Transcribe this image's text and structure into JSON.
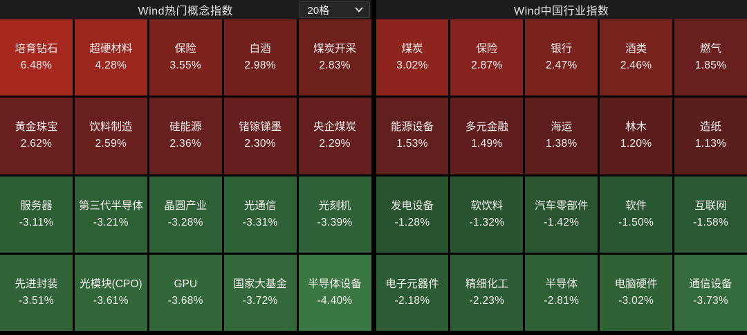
{
  "header": {
    "left_title": "Wind热门概念指数",
    "right_title": "Wind中国行业指数",
    "dropdown": {
      "value": "20格",
      "icon": "chevron-down-icon"
    }
  },
  "colors": {
    "background": "#000000",
    "header_bg": "#1c1c1c",
    "dropdown_bg": "#262626",
    "tile_text": "#f2efee",
    "up_bright": "#a7281e",
    "up_dark": "#5a1e1d",
    "down_bright": "#3a7742",
    "down_dark": "#27542e"
  },
  "chart_data": [
    {
      "type": "heatmap",
      "title": "Wind热门概念指数",
      "grid": {
        "rows": 4,
        "cols": 5
      },
      "value_unit": "percent_change",
      "cells": [
        {
          "label": "培育钻石",
          "value": 6.48,
          "display": "6.48%",
          "color": "#a7281e"
        },
        {
          "label": "超硬材料",
          "value": 4.28,
          "display": "4.28%",
          "color": "#9a261e"
        },
        {
          "label": "保险",
          "value": 3.55,
          "display": "3.55%",
          "color": "#7e221e"
        },
        {
          "label": "白酒",
          "value": 2.98,
          "display": "2.98%",
          "color": "#70201d"
        },
        {
          "label": "煤炭开采",
          "value": 2.83,
          "display": "2.83%",
          "color": "#6e201d"
        },
        {
          "label": "黄金珠宝",
          "value": 2.62,
          "display": "2.62%",
          "color": "#6a201e"
        },
        {
          "label": "饮料制造",
          "value": 2.59,
          "display": "2.59%",
          "color": "#69201e"
        },
        {
          "label": "硅能源",
          "value": 2.36,
          "display": "2.36%",
          "color": "#66201e"
        },
        {
          "label": "锗镓锑墨",
          "value": 2.3,
          "display": "2.30%",
          "color": "#651f1e"
        },
        {
          "label": "央企煤炭",
          "value": 2.29,
          "display": "2.29%",
          "color": "#651f1e"
        },
        {
          "label": "服务器",
          "value": -3.11,
          "display": "-3.11%",
          "color": "#2c5f34"
        },
        {
          "label": "第三代半导体",
          "value": -3.21,
          "display": "-3.21%",
          "color": "#2d6035"
        },
        {
          "label": "晶圆产业",
          "value": -3.28,
          "display": "-3.28%",
          "color": "#2d6135"
        },
        {
          "label": "光通信",
          "value": -3.31,
          "display": "-3.31%",
          "color": "#2e6236"
        },
        {
          "label": "光刻机",
          "value": -3.39,
          "display": "-3.39%",
          "color": "#2f6337"
        },
        {
          "label": "先进封装",
          "value": -3.51,
          "display": "-3.51%",
          "color": "#306438"
        },
        {
          "label": "光模块(CPO)",
          "value": -3.61,
          "display": "-3.61%",
          "color": "#316639"
        },
        {
          "label": "GPU",
          "value": -3.68,
          "display": "-3.68%",
          "color": "#32673a"
        },
        {
          "label": "国家大基金",
          "value": -3.72,
          "display": "-3.72%",
          "color": "#33683a"
        },
        {
          "label": "半导体设备",
          "value": -4.4,
          "display": "-4.40%",
          "color": "#3a7742"
        }
      ]
    },
    {
      "type": "heatmap",
      "title": "Wind中国行业指数",
      "grid": {
        "rows": 4,
        "cols": 5
      },
      "value_unit": "percent_change",
      "cells": [
        {
          "label": "煤炭",
          "value": 3.02,
          "display": "3.02%",
          "color": "#8e241e"
        },
        {
          "label": "保险",
          "value": 2.87,
          "display": "2.87%",
          "color": "#87231e"
        },
        {
          "label": "银行",
          "value": 2.47,
          "display": "2.47%",
          "color": "#79221e"
        },
        {
          "label": "酒类",
          "value": 2.46,
          "display": "2.46%",
          "color": "#78221e"
        },
        {
          "label": "燃气",
          "value": 1.85,
          "display": "1.85%",
          "color": "#681f1e"
        },
        {
          "label": "能源设备",
          "value": 1.53,
          "display": "1.53%",
          "color": "#611f1e"
        },
        {
          "label": "多元金融",
          "value": 1.49,
          "display": "1.49%",
          "color": "#601f1e"
        },
        {
          "label": "海运",
          "value": 1.38,
          "display": "1.38%",
          "color": "#5e1e1d"
        },
        {
          "label": "林木",
          "value": 1.2,
          "display": "1.20%",
          "color": "#5b1e1d"
        },
        {
          "label": "造纸",
          "value": 1.13,
          "display": "1.13%",
          "color": "#5a1e1d"
        },
        {
          "label": "发电设备",
          "value": -1.28,
          "display": "-1.28%",
          "color": "#27542e"
        },
        {
          "label": "软饮料",
          "value": -1.32,
          "display": "-1.32%",
          "color": "#28552f"
        },
        {
          "label": "汽车零部件",
          "value": -1.42,
          "display": "-1.42%",
          "color": "#295630"
        },
        {
          "label": "软件",
          "value": -1.5,
          "display": "-1.50%",
          "color": "#295731"
        },
        {
          "label": "互联网",
          "value": -1.58,
          "display": "-1.58%",
          "color": "#2a5832"
        },
        {
          "label": "电子元器件",
          "value": -2.18,
          "display": "-2.18%",
          "color": "#2b5b33"
        },
        {
          "label": "精细化工",
          "value": -2.23,
          "display": "-2.23%",
          "color": "#2c5c33"
        },
        {
          "label": "半导体",
          "value": -2.81,
          "display": "-2.81%",
          "color": "#2e6035"
        },
        {
          "label": "电脑硬件",
          "value": -3.02,
          "display": "-3.02%",
          "color": "#2f6336"
        },
        {
          "label": "通信设备",
          "value": -3.73,
          "display": "-3.73%",
          "color": "#346b3c"
        }
      ]
    }
  ]
}
